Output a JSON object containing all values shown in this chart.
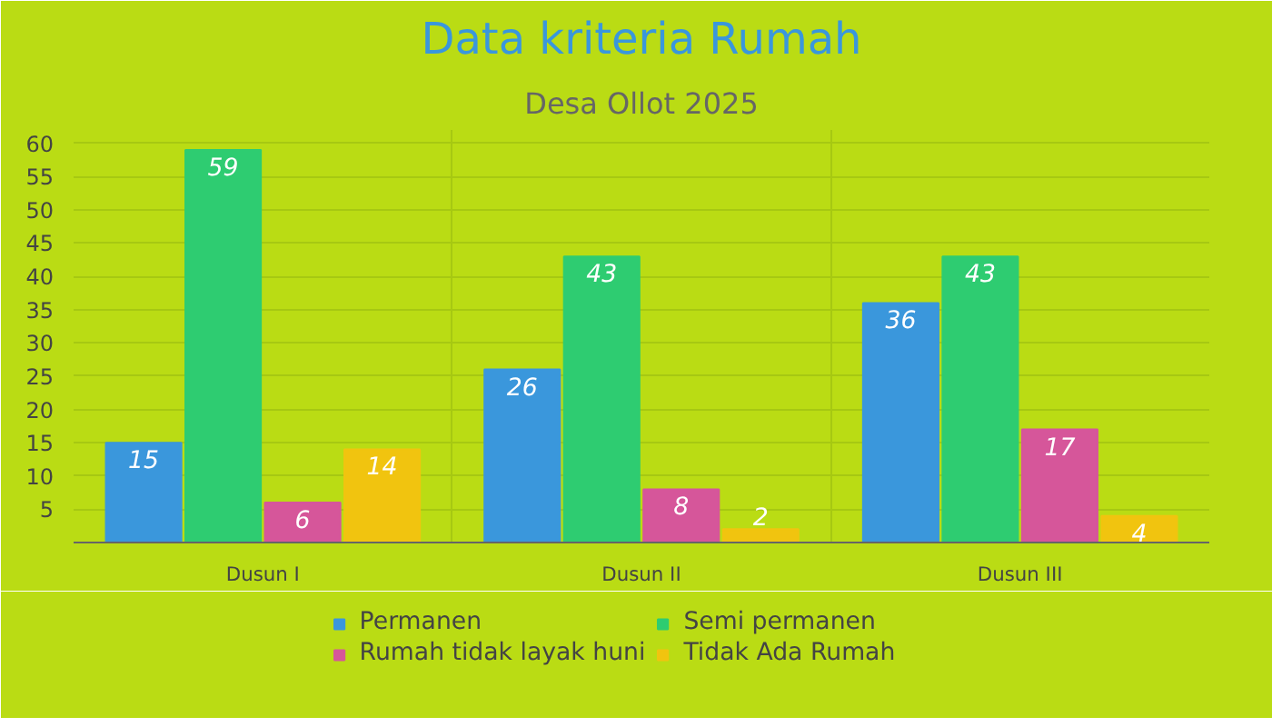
{
  "chart_data": {
    "type": "bar",
    "title": "Data kriteria Rumah",
    "subtitle": "Desa Ollot 2025",
    "categories": [
      "Dusun I",
      "Dusun II",
      "Dusun III"
    ],
    "series": [
      {
        "name": "Permanen",
        "color": "#3a97dc",
        "values": [
          15,
          26,
          36
        ]
      },
      {
        "name": "Semi permanen",
        "color": "#2ecc71",
        "values": [
          59,
          43,
          43
        ]
      },
      {
        "name": "Rumah tidak layak huni",
        "color": "#d6569a",
        "values": [
          6,
          8,
          17
        ]
      },
      {
        "name": "Tidak Ada Rumah",
        "color": "#f1c40f",
        "values": [
          14,
          2,
          4
        ]
      }
    ],
    "ylim": [
      0,
      62
    ],
    "yticks": [
      5,
      10,
      15,
      20,
      25,
      30,
      35,
      40,
      45,
      50,
      55,
      60
    ],
    "grid": true,
    "legend": "bottom",
    "data_labels": true
  }
}
